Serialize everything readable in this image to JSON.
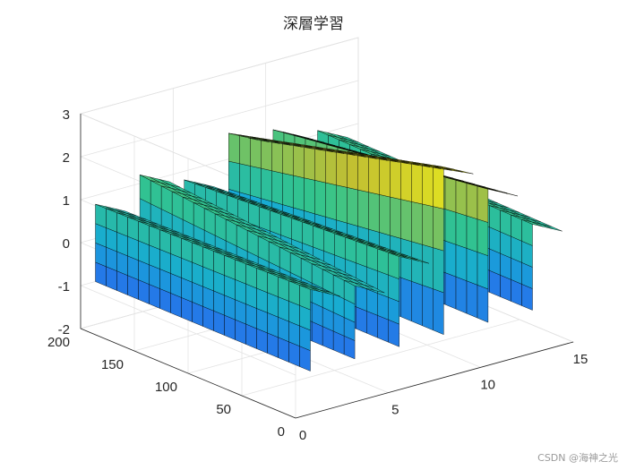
{
  "chart_data": {
    "type": "surface",
    "title": "深層学習",
    "colormap": "parula",
    "grid": true,
    "xlim": [
      0,
      15
    ],
    "ylim": [
      0,
      200
    ],
    "zlim": [
      -2,
      3
    ],
    "x_ticks": [
      "0",
      "5",
      "10",
      "15"
    ],
    "y_ticks": [
      "0",
      "50",
      "100",
      "150",
      "200"
    ],
    "z_ticks": [
      "-2",
      "-1",
      "0",
      "1",
      "2",
      "3"
    ],
    "xlabel": "",
    "ylabel": "",
    "zlabel": "",
    "surface": {
      "rows": 6,
      "mesh_columns": 20,
      "row_x": [
        0.8,
        3.2,
        5.6,
        8.0,
        10.4,
        12.8
      ],
      "y_range": [
        0,
        200
      ],
      "top_z_at_y0": [
        0.9,
        0.7,
        1.1,
        2.9,
        2.1,
        1.0
      ],
      "top_z_at_y200": [
        0.8,
        1.2,
        0.8,
        1.6,
        1.4,
        1.1
      ],
      "bottom_z": -1.0,
      "z_min": -1.9,
      "z_max": 2.9
    }
  },
  "watermark": "CSDN @海神之光"
}
